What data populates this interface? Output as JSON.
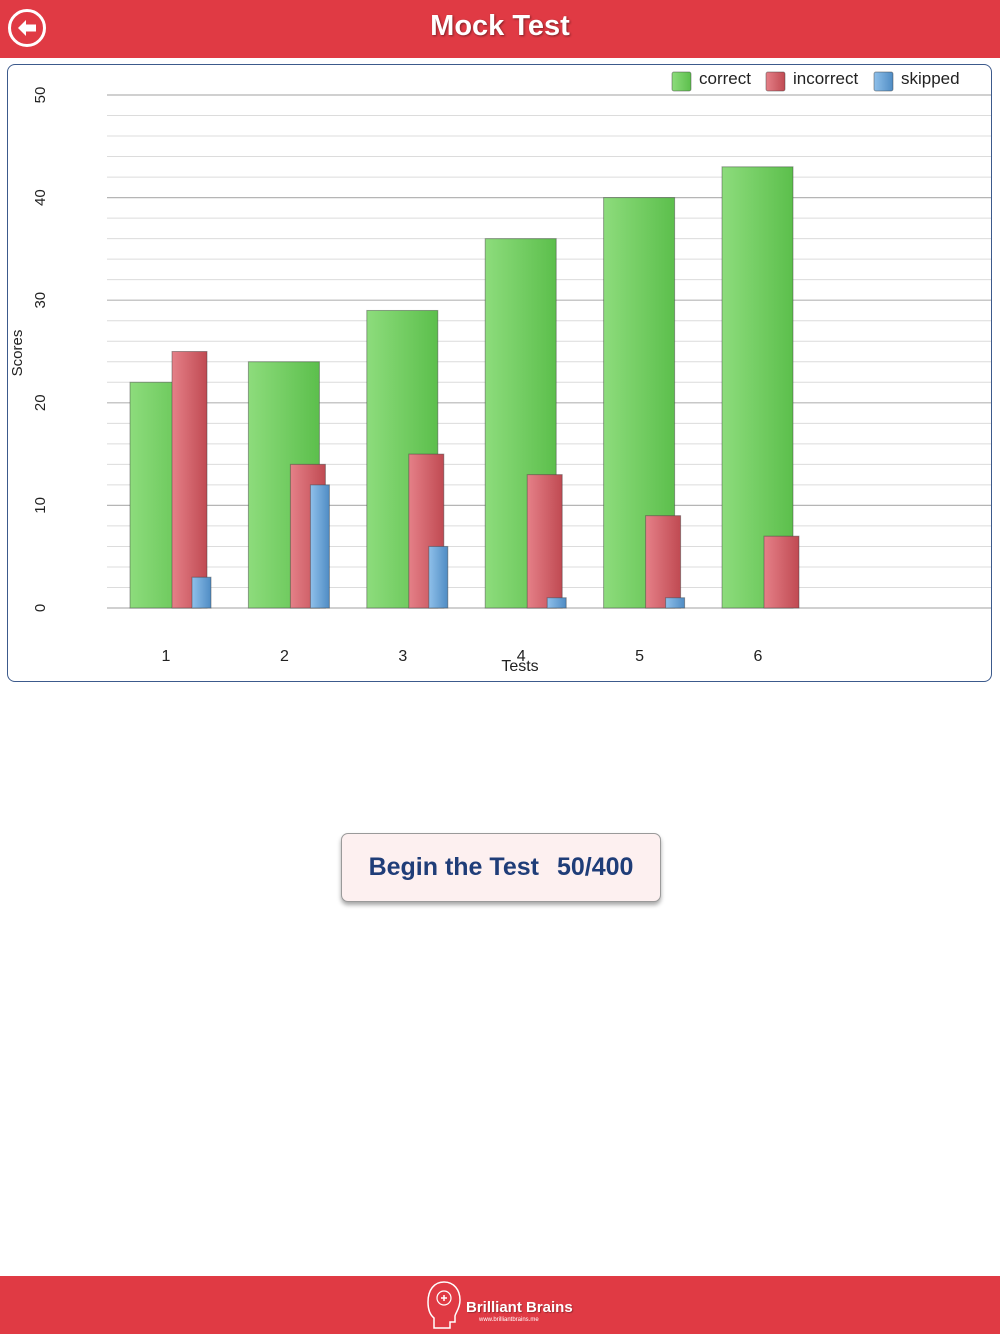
{
  "header": {
    "title": "Mock Test",
    "back_icon": "back-arrow-icon"
  },
  "chart_data": {
    "type": "bar",
    "title": "",
    "xlabel": "Tests",
    "ylabel": "Scores",
    "categories": [
      "1",
      "2",
      "3",
      "4",
      "5",
      "6"
    ],
    "series": [
      {
        "name": "correct",
        "color": "#6cc95a",
        "values": [
          22,
          24,
          29,
          36,
          40,
          43
        ]
      },
      {
        "name": "incorrect",
        "color": "#cc5a62",
        "values": [
          25,
          14,
          15,
          13,
          9,
          7
        ]
      },
      {
        "name": "skipped",
        "color": "#6ba3d6",
        "values": [
          3,
          12,
          6,
          1,
          1,
          0
        ]
      }
    ],
    "ylim": [
      0,
      50
    ],
    "yticks": [
      "0",
      "10",
      "20",
      "30",
      "40",
      "50"
    ],
    "grid": true,
    "legend": "top-right"
  },
  "main": {
    "begin_label": "Begin the Test",
    "progress": "50/400"
  },
  "footer": {
    "brand_name": "Brilliant Brains",
    "brand_url": "www.brilliantbrains.me",
    "logo_icon": "brain-head-logo-icon"
  }
}
